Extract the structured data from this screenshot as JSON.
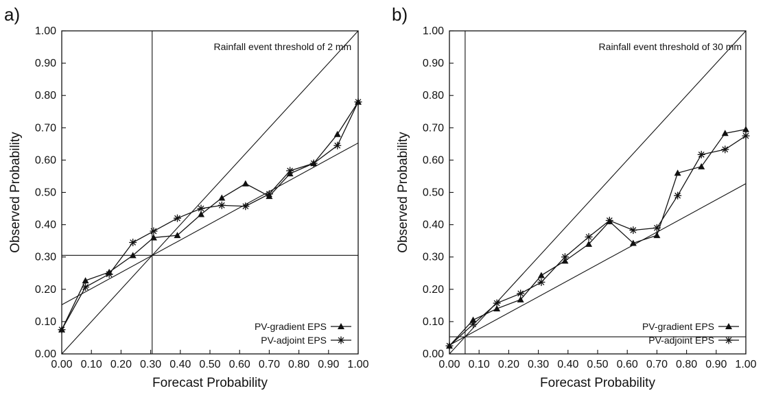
{
  "chart_data": [
    {
      "panel_label": "a)",
      "type": "line",
      "title": "",
      "annotation": "Rainfall event threshold of 2 mm",
      "xlabel": "Forecast Probability",
      "ylabel": "Observed Probability",
      "xlim": [
        0,
        1
      ],
      "ylim": [
        0,
        1
      ],
      "xticks": [
        "0.00",
        "0.10",
        "0.20",
        "0.30",
        "0.40",
        "0.50",
        "0.60",
        "0.70",
        "0.80",
        "0.90",
        "1.00"
      ],
      "yticks": [
        "0.00",
        "0.10",
        "0.20",
        "0.30",
        "0.40",
        "0.50",
        "0.60",
        "0.70",
        "0.80",
        "0.90",
        "1.00"
      ],
      "legend_position": "bottom-right",
      "climatology": 0.305,
      "no_skill_line": [
        [
          0,
          0.152
        ],
        [
          1,
          0.653
        ]
      ],
      "series": [
        {
          "name": "PV-gradient EPS",
          "marker": "triangle",
          "x": [
            0.0,
            0.08,
            0.16,
            0.24,
            0.31,
            0.39,
            0.47,
            0.54,
            0.62,
            0.7,
            0.77,
            0.85,
            0.93,
            1.0
          ],
          "y": [
            0.075,
            0.227,
            0.253,
            0.305,
            0.36,
            0.367,
            0.432,
            0.483,
            0.527,
            0.488,
            0.558,
            0.59,
            0.68,
            0.78
          ]
        },
        {
          "name": "PV-adjoint EPS",
          "marker": "asterisk",
          "x": [
            0.0,
            0.08,
            0.16,
            0.24,
            0.31,
            0.39,
            0.47,
            0.54,
            0.62,
            0.7,
            0.77,
            0.85,
            0.93,
            1.0
          ],
          "y": [
            0.075,
            0.207,
            0.247,
            0.345,
            0.38,
            0.42,
            0.45,
            0.46,
            0.457,
            0.495,
            0.567,
            0.59,
            0.645,
            0.78
          ]
        }
      ]
    },
    {
      "panel_label": "b)",
      "type": "line",
      "title": "",
      "annotation": "Rainfall event threshold of 30 mm",
      "xlabel": "Forecast Probability",
      "ylabel": "Observed Probability",
      "xlim": [
        0,
        1
      ],
      "ylim": [
        0,
        1
      ],
      "xticks": [
        "0.00",
        "0.10",
        "0.20",
        "0.30",
        "0.40",
        "0.50",
        "0.60",
        "0.70",
        "0.80",
        "0.90",
        "1.00"
      ],
      "yticks": [
        "0.00",
        "0.10",
        "0.20",
        "0.30",
        "0.40",
        "0.50",
        "0.60",
        "0.70",
        "0.80",
        "0.90",
        "1.00"
      ],
      "legend_position": "bottom-right",
      "climatology": 0.053,
      "no_skill_line": [
        [
          0,
          0.027
        ],
        [
          1,
          0.527
        ]
      ],
      "series": [
        {
          "name": "PV-gradient EPS",
          "marker": "triangle",
          "x": [
            0.0,
            0.08,
            0.16,
            0.24,
            0.31,
            0.39,
            0.47,
            0.54,
            0.62,
            0.7,
            0.77,
            0.85,
            0.93,
            1.0
          ],
          "y": [
            0.025,
            0.105,
            0.14,
            0.168,
            0.243,
            0.288,
            0.34,
            0.41,
            0.343,
            0.367,
            0.56,
            0.58,
            0.683,
            0.695
          ]
        },
        {
          "name": "PV-adjoint EPS",
          "marker": "asterisk",
          "x": [
            0.0,
            0.08,
            0.16,
            0.24,
            0.31,
            0.39,
            0.47,
            0.54,
            0.62,
            0.7,
            0.77,
            0.85,
            0.93,
            1.0
          ],
          "y": [
            0.025,
            0.092,
            0.157,
            0.187,
            0.222,
            0.3,
            0.362,
            0.413,
            0.383,
            0.39,
            0.49,
            0.617,
            0.633,
            0.675
          ]
        }
      ]
    }
  ]
}
